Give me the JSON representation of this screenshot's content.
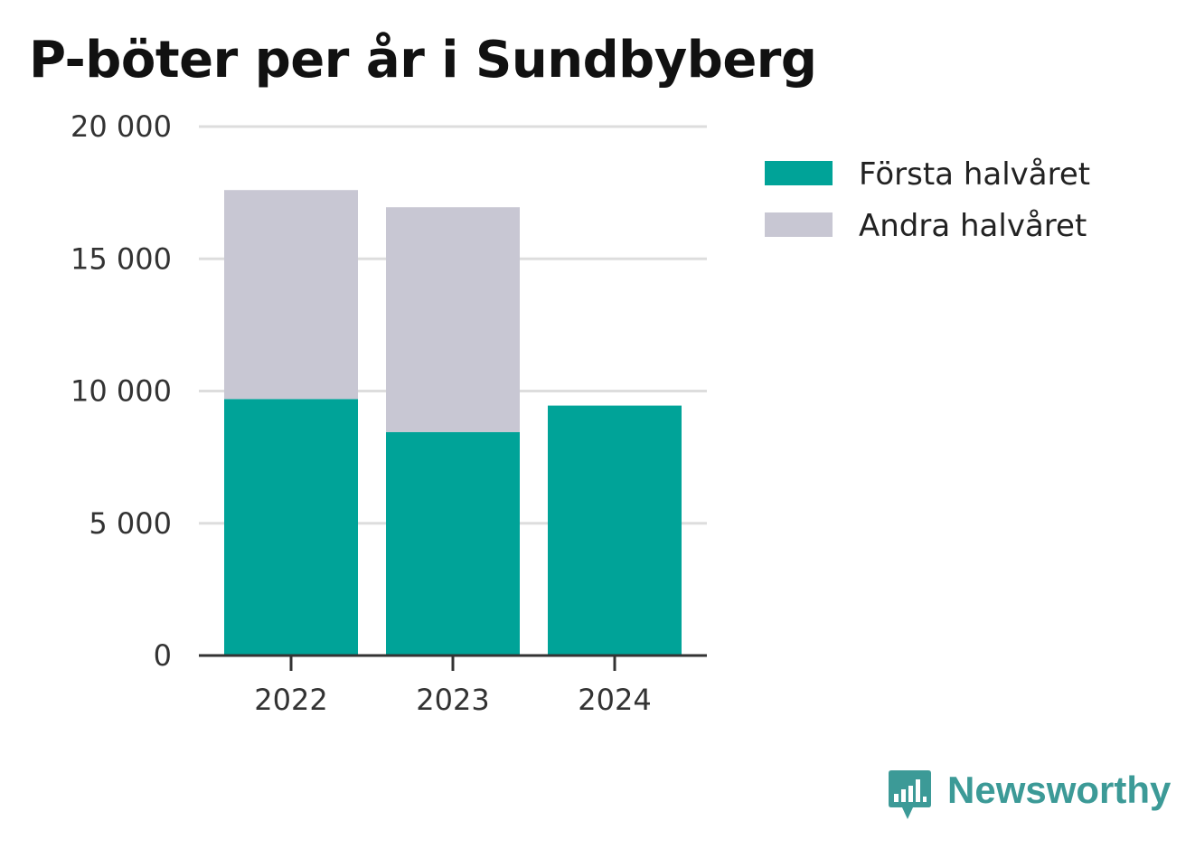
{
  "chart_data": {
    "type": "bar",
    "stacked": true,
    "title": "P-böter per år i Sundbyberg",
    "categories": [
      "2022",
      "2023",
      "2024"
    ],
    "series": [
      {
        "name": "Första halvåret",
        "values": [
          9700,
          8450,
          9450
        ],
        "color": "#00a398"
      },
      {
        "name": "Andra halvåret",
        "values": [
          7900,
          8500,
          null
        ],
        "color": "#c8c7d3"
      }
    ],
    "y_ticks": [
      0,
      5000,
      10000,
      15000,
      20000
    ],
    "y_tick_labels": [
      "0",
      "5 000",
      "10 000",
      "15 000",
      "20 000"
    ],
    "ylim": [
      0,
      20000
    ],
    "grid": true,
    "legend_position": "right",
    "xlabel": "",
    "ylabel": ""
  },
  "branding": {
    "logo_text": "Newsworthy",
    "logo_icon": "bar-chart-speech-bubble-icon",
    "logo_color": "#3c9a97"
  }
}
